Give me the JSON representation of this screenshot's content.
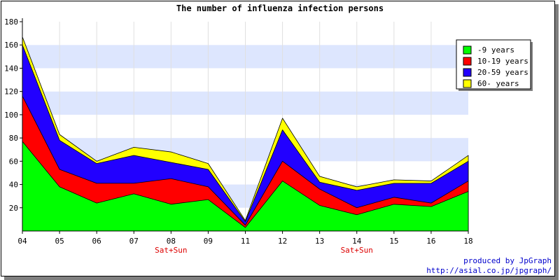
{
  "chart_data": {
    "type": "area",
    "stacked": true,
    "title": "The number of influenza infection persons",
    "categories": [
      "04",
      "05",
      "06",
      "07",
      "08",
      "09",
      "11",
      "12",
      "13",
      "14",
      "15",
      "16",
      "18"
    ],
    "weekend_labels": [
      {
        "category": "08",
        "text": "Sat+Sun"
      },
      {
        "category": "14",
        "text": "Sat+Sun"
      }
    ],
    "ylim": [
      0,
      180
    ],
    "yticks": [
      20,
      40,
      60,
      80,
      100,
      120,
      140,
      160,
      180
    ],
    "grid": true,
    "legend_position": "top-right",
    "series": [
      {
        "name": "-9 years",
        "color": "#00ff00",
        "values": [
          77,
          38,
          24,
          32,
          23,
          27,
          3,
          43,
          22,
          14,
          23,
          21,
          34
        ]
      },
      {
        "name": "10-19 years",
        "color": "#ff0000",
        "values": [
          39,
          15,
          17,
          9,
          22,
          11,
          2,
          17,
          14,
          6,
          6,
          3,
          9
        ]
      },
      {
        "name": "20-59 years",
        "color": "#2200ff",
        "values": [
          44,
          25,
          17,
          24,
          14,
          15,
          3,
          27,
          6,
          15,
          12,
          17,
          17
        ]
      },
      {
        "name": "60- years",
        "color": "#ffff00",
        "values": [
          7,
          5,
          2,
          7,
          9,
          5,
          1,
          10,
          5,
          3,
          3,
          2,
          5
        ]
      }
    ]
  },
  "credits": {
    "line1": "produced by JpGraph",
    "line2": "http://asial.co.jp/jpgraph/"
  }
}
